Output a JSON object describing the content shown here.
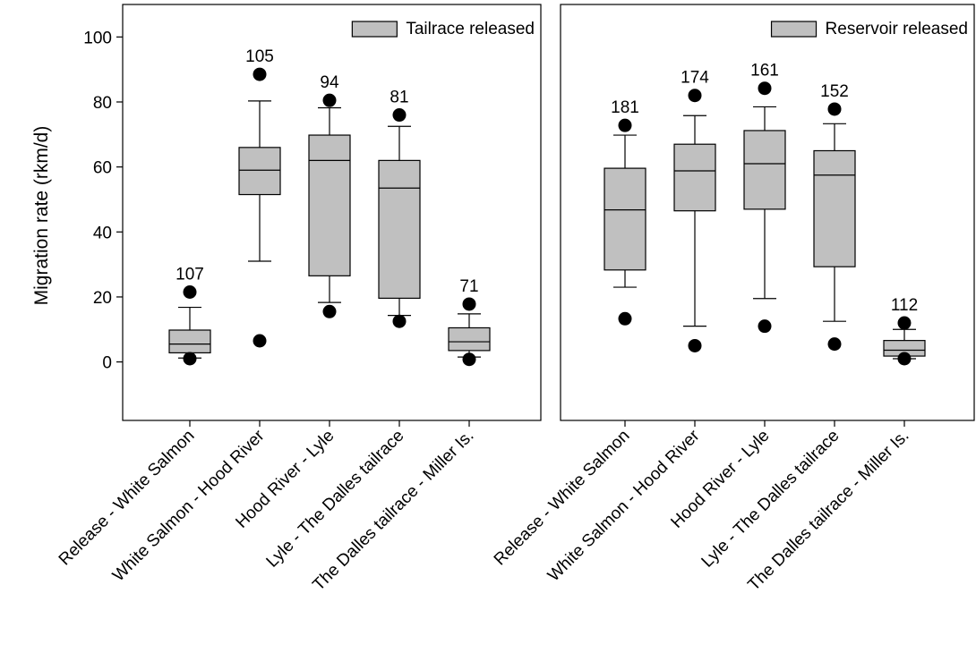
{
  "chart_data": {
    "type": "box",
    "ylabel": "Migration rate (rkm/d)",
    "ylim": [
      -18,
      110
    ],
    "yticks": [
      0,
      20,
      40,
      60,
      80,
      100
    ],
    "categories": [
      "Release - White Salmon",
      "White Salmon - Hood River",
      "Hood River - Lyle",
      "Lyle - The Dalles tailrace",
      "The Dalles tailrace - Miller Is."
    ],
    "panels": [
      {
        "legend": "Tailrace released",
        "legend_position": "top-right",
        "box_color": "#c0c0c0",
        "boxes": [
          {
            "n": "107",
            "whisker_low": 1.2,
            "q1": 2.8,
            "median": 5.5,
            "q3": 9.8,
            "whisker_high": 16.8,
            "outliers": [
              21.5,
              1.0
            ]
          },
          {
            "n": "105",
            "whisker_low": 31.0,
            "q1": 51.5,
            "median": 59.0,
            "q3": 66.0,
            "whisker_high": 80.3,
            "outliers": [
              88.5,
              6.5
            ]
          },
          {
            "n": "94",
            "whisker_low": 18.3,
            "q1": 26.5,
            "median": 62.0,
            "q3": 69.8,
            "whisker_high": 78.2,
            "outliers": [
              80.5,
              15.5
            ]
          },
          {
            "n": "81",
            "whisker_low": 14.3,
            "q1": 19.6,
            "median": 53.5,
            "q3": 62.0,
            "whisker_high": 72.5,
            "outliers": [
              76.0,
              12.5
            ]
          },
          {
            "n": "71",
            "whisker_low": 1.5,
            "q1": 3.5,
            "median": 6.2,
            "q3": 10.5,
            "whisker_high": 14.8,
            "outliers": [
              17.8,
              0.8
            ]
          }
        ]
      },
      {
        "legend": "Reservoir released",
        "legend_position": "top-right",
        "box_color": "#c0c0c0",
        "boxes": [
          {
            "n": "181",
            "whisker_low": 23.0,
            "q1": 28.3,
            "median": 46.8,
            "q3": 59.6,
            "whisker_high": 69.8,
            "outliers": [
              72.8,
              13.3
            ]
          },
          {
            "n": "174",
            "whisker_low": 11.0,
            "q1": 46.5,
            "median": 58.8,
            "q3": 67.0,
            "whisker_high": 75.8,
            "outliers": [
              82.0,
              5.0
            ]
          },
          {
            "n": "161",
            "whisker_low": 19.5,
            "q1": 47.0,
            "median": 61.0,
            "q3": 71.2,
            "whisker_high": 78.5,
            "outliers": [
              84.2,
              11.0
            ]
          },
          {
            "n": "152",
            "whisker_low": 12.5,
            "q1": 29.3,
            "median": 57.5,
            "q3": 65.0,
            "whisker_high": 73.3,
            "outliers": [
              77.8,
              5.5
            ]
          },
          {
            "n": "112",
            "whisker_low": 1.0,
            "q1": 1.8,
            "median": 3.6,
            "q3": 6.6,
            "whisker_high": 10.0,
            "outliers": [
              12.0,
              1.0
            ]
          }
        ]
      }
    ]
  }
}
